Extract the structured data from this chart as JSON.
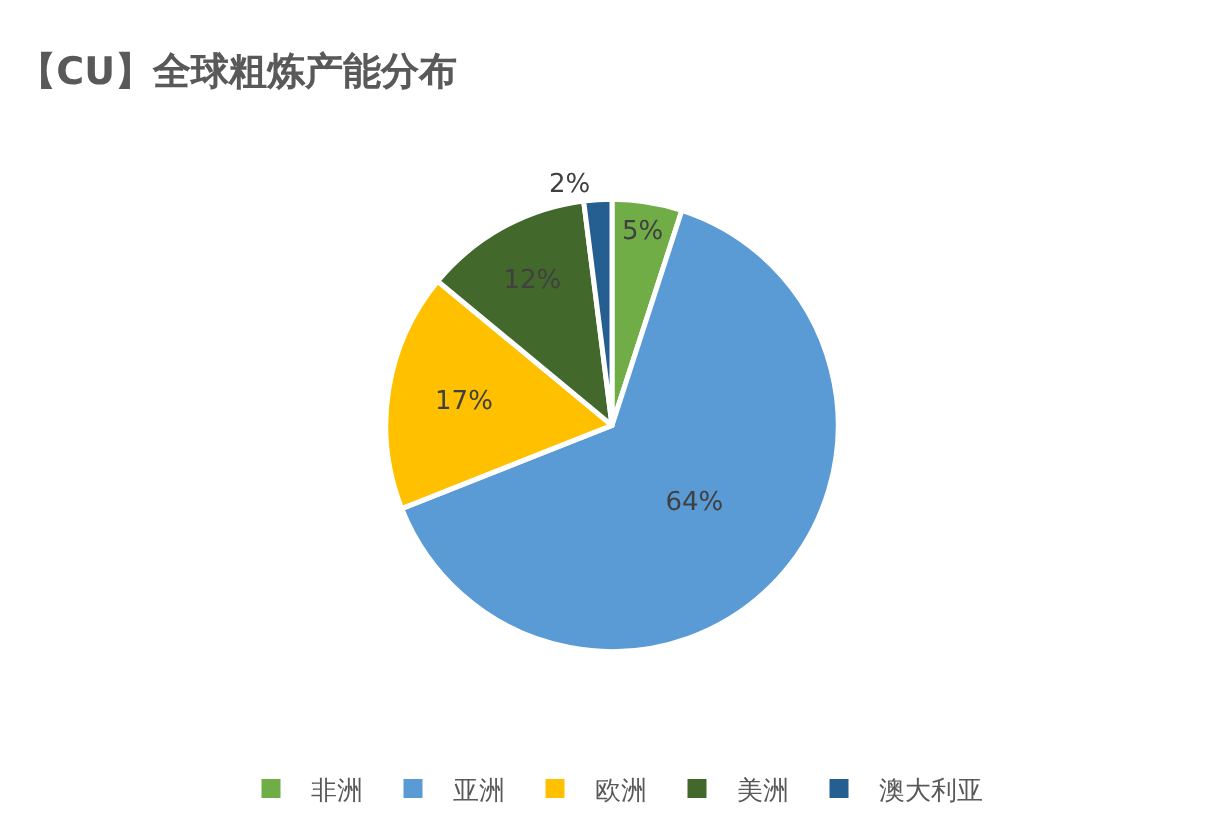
{
  "chart_data": {
    "type": "pie",
    "title": "【CU】全球粗炼产能分布",
    "categories": [
      "非洲",
      "亚洲",
      "欧洲",
      "美洲",
      "澳大利亚"
    ],
    "values": [
      5,
      64,
      17,
      12,
      2
    ],
    "value_labels": [
      "5%",
      "64%",
      "17%",
      "12%",
      "2%"
    ],
    "colors": [
      "#70ad47",
      "#5b9bd5",
      "#ffc000",
      "#43682b",
      "#255e91"
    ],
    "legend": "bottom"
  }
}
